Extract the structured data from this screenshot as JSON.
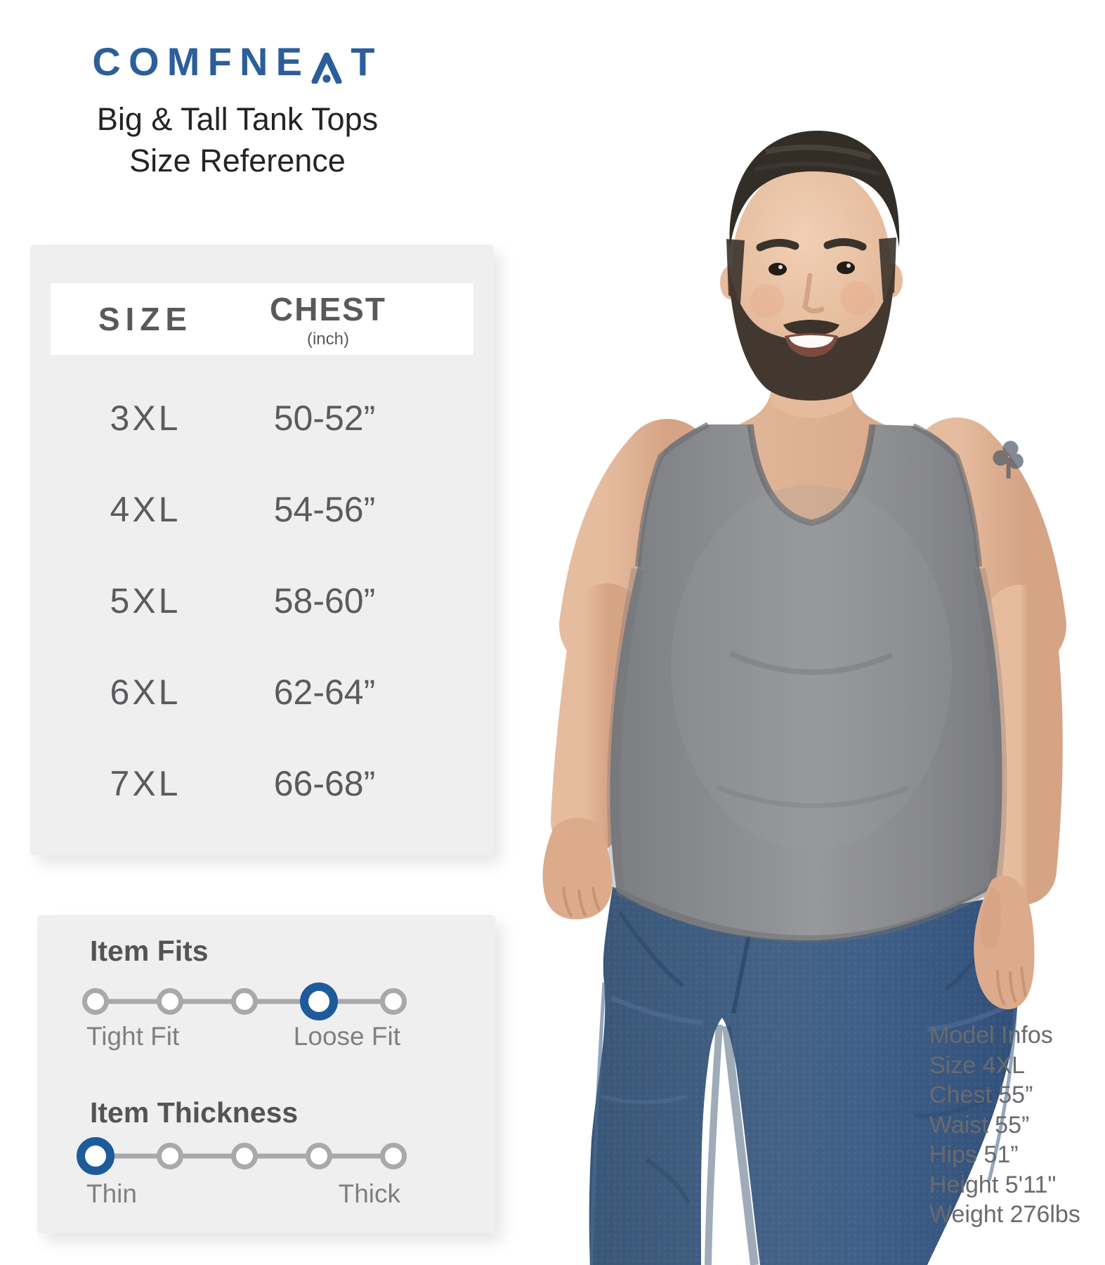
{
  "brand": {
    "name": "COMFNEAT",
    "part1": "COMFNE",
    "part2": "T",
    "blue": "#2b5e9a"
  },
  "title": {
    "line1": "Big & Tall Tank Tops",
    "line2": "Size Reference"
  },
  "size_table": {
    "headers": {
      "size": "SIZE",
      "chest": "CHEST",
      "chest_unit": "(inch)"
    },
    "rows": [
      {
        "size": "3XL",
        "chest": "50-52”"
      },
      {
        "size": "4XL",
        "chest": "54-56”"
      },
      {
        "size": "5XL",
        "chest": "58-60”"
      },
      {
        "size": "6XL",
        "chest": "62-64”"
      },
      {
        "size": "7XL",
        "chest": "66-68”"
      }
    ]
  },
  "fit_info": {
    "fits": {
      "label": "Item Fits",
      "left": "Tight Fit",
      "right": "Loose Fit",
      "dots": 5,
      "selected_index": 3
    },
    "thickness": {
      "label": "Item Thickness",
      "left": "Thin",
      "right": "Thick",
      "dots": 5,
      "selected_index": 0
    }
  },
  "model_info": {
    "lines": [
      "Model Infos",
      "Size 4XL",
      "Chest 55”",
      "Waist 55”",
      "Hips 51”",
      "Height 5'11\"",
      "Weight 276lbs"
    ]
  },
  "colors": {
    "brand_blue": "#2b5e9a",
    "slider_blue": "#1e5b9b",
    "dot_gray": "#a8a9ab",
    "panel_gray": "#efeff0",
    "table_text": "#5a5b5e"
  }
}
